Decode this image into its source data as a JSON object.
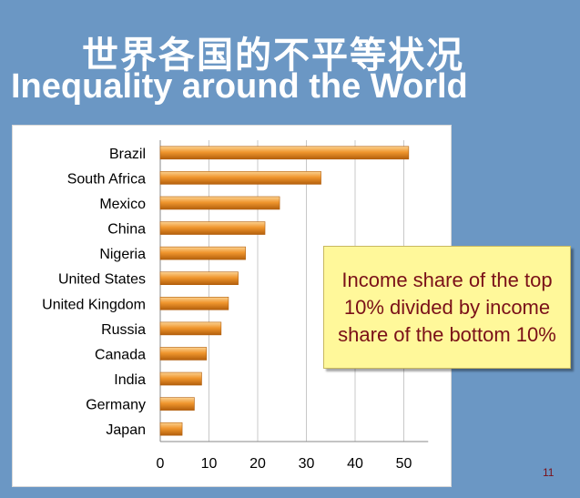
{
  "slide": {
    "title_cn": "世界各国的不平等状况",
    "title_en": "Inequality around the World",
    "callout": "Income share of the top 10% divided by income share of the bottom 10%",
    "page_number": "11"
  },
  "colors": {
    "background": "#6b97c4",
    "bar_light": "#fbd291",
    "bar_mid": "#f0962e",
    "bar_dark": "#b35f0c",
    "callout_bg": "#fff89a",
    "callout_text": "#7a1018"
  },
  "chart_data": {
    "type": "bar",
    "orientation": "horizontal",
    "categories": [
      "Brazil",
      "South Africa",
      "Mexico",
      "China",
      "Nigeria",
      "United States",
      "United Kingdom",
      "Russia",
      "Canada",
      "India",
      "Germany",
      "Japan"
    ],
    "values": [
      51,
      33,
      24.5,
      21.5,
      17.5,
      16,
      14,
      12.5,
      9.5,
      8.5,
      7,
      4.5
    ],
    "xlim": [
      0,
      55
    ],
    "xticks": [
      0,
      10,
      20,
      30,
      40,
      50
    ],
    "grid": "vertical"
  }
}
